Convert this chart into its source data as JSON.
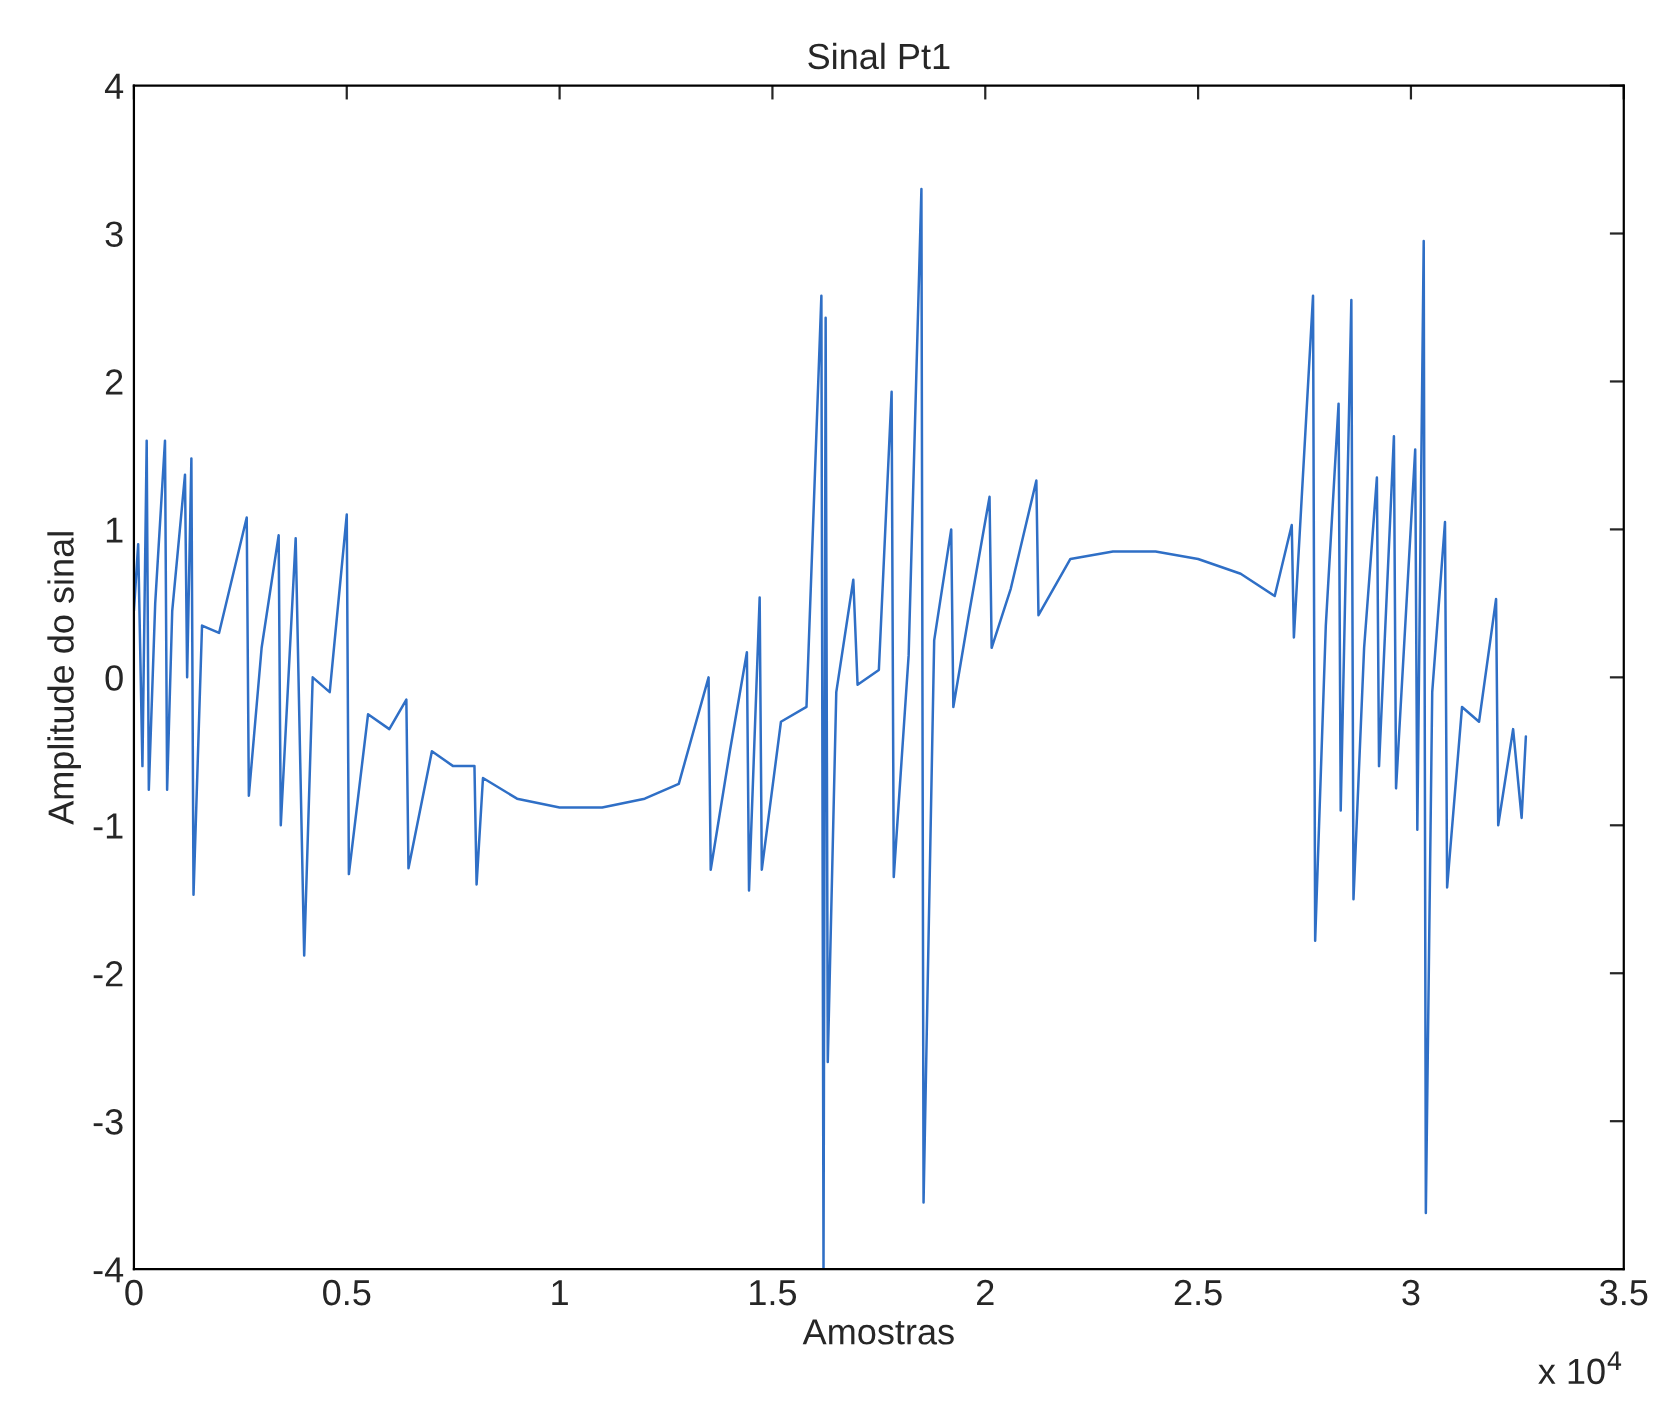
{
  "chart_data": {
    "type": "line",
    "title": "Sinal Pt1",
    "xlabel": "Amostras",
    "ylabel": "Amplitude do sinal",
    "annotations": [
      "x 10$^{4}$"
    ],
    "xlim": [
      0,
      3.5
    ],
    "xticks": [
      0,
      0.5,
      1,
      1.5,
      2,
      2.5,
      3,
      3.5
    ],
    "ylim": [
      -4,
      4
    ],
    "yticks": [
      -4,
      -3,
      -2,
      -1,
      0,
      1,
      2,
      3,
      4
    ],
    "grid": false,
    "marker": "none",
    "line_style": "solid",
    "series": [
      {
        "color": "#2f6fc6",
        "x": [
          0.0,
          0.01,
          0.02,
          0.03,
          0.035,
          0.05,
          0.073,
          0.078,
          0.09,
          0.12,
          0.125,
          0.135,
          0.14,
          0.16,
          0.2,
          0.265,
          0.27,
          0.3,
          0.34,
          0.345,
          0.38,
          0.4,
          0.42,
          0.46,
          0.5,
          0.505,
          0.55,
          0.6,
          0.64,
          0.645,
          0.7,
          0.75,
          0.8,
          0.805,
          0.82,
          0.9,
          1.0,
          1.1,
          1.2,
          1.28,
          1.35,
          1.355,
          1.4,
          1.44,
          1.445,
          1.47,
          1.475,
          1.52,
          1.58,
          1.615,
          1.62,
          1.625,
          1.63,
          1.65,
          1.69,
          1.7,
          1.75,
          1.78,
          1.785,
          1.82,
          1.85,
          1.855,
          1.88,
          1.92,
          1.925,
          1.96,
          2.01,
          2.015,
          2.06,
          2.12,
          2.125,
          2.2,
          2.3,
          2.4,
          2.5,
          2.6,
          2.68,
          2.72,
          2.725,
          2.77,
          2.775,
          2.8,
          2.83,
          2.835,
          2.86,
          2.865,
          2.89,
          2.92,
          2.925,
          2.96,
          2.965,
          3.01,
          3.015,
          3.03,
          3.035,
          3.05,
          3.08,
          3.085,
          3.12,
          3.16,
          3.2,
          3.205,
          3.24,
          3.26,
          3.27
        ],
        "values": [
          0.45,
          0.9,
          -0.6,
          1.6,
          -0.76,
          0.5,
          1.6,
          -0.76,
          0.45,
          1.37,
          0.0,
          1.48,
          -1.47,
          0.35,
          0.3,
          1.08,
          -0.8,
          0.2,
          0.96,
          -1.0,
          0.94,
          -1.88,
          0.0,
          -0.1,
          1.1,
          -1.33,
          -0.25,
          -0.35,
          -0.15,
          -1.29,
          -0.5,
          -0.6,
          -0.6,
          -1.4,
          -0.68,
          -0.82,
          -0.88,
          -0.88,
          -0.82,
          -0.72,
          0.0,
          -1.3,
          -0.5,
          0.17,
          -1.44,
          0.54,
          -1.3,
          -0.3,
          -0.2,
          2.58,
          -4.0,
          2.43,
          -2.6,
          -0.1,
          0.66,
          -0.05,
          0.05,
          1.93,
          -1.35,
          0.15,
          3.3,
          -3.55,
          0.25,
          1.0,
          -0.2,
          0.4,
          1.22,
          0.2,
          0.6,
          1.33,
          0.42,
          0.8,
          0.85,
          0.85,
          0.8,
          0.7,
          0.55,
          1.03,
          0.27,
          2.58,
          -1.78,
          0.35,
          1.85,
          -0.9,
          2.55,
          -1.5,
          0.2,
          1.35,
          -0.6,
          1.63,
          -0.75,
          1.54,
          -1.03,
          2.95,
          -3.62,
          -0.1,
          1.05,
          -1.42,
          -0.2,
          -0.3,
          0.53,
          -1.0,
          -0.35,
          -0.95,
          -0.4
        ]
      }
    ]
  }
}
